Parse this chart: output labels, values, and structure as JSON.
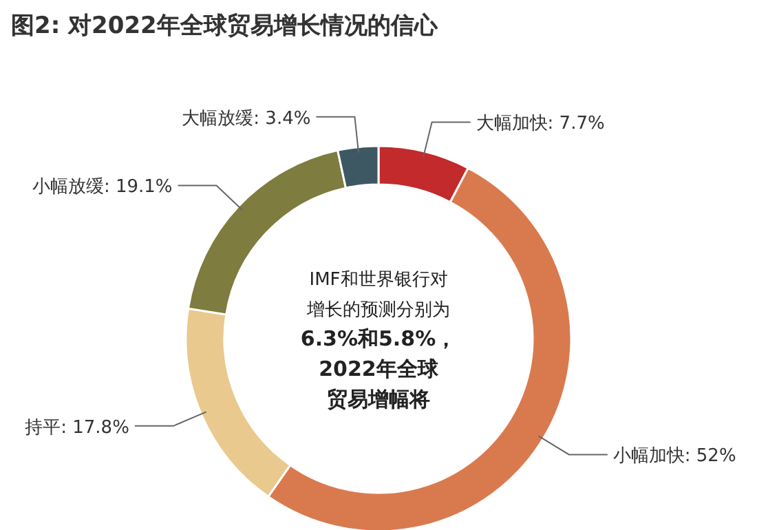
{
  "chart_data": {
    "type": "donut",
    "title": "图2: 对2022年全球贸易增长情况的信心",
    "categories": [
      "大幅加快",
      "小幅加快",
      "持平",
      "小幅放缓",
      "大幅放缓"
    ],
    "values": [
      7.7,
      52,
      17.8,
      19.1,
      3.4
    ],
    "value_labels": [
      ": 7.7%",
      ": 52%",
      ": 17.8%",
      ": 19.1%",
      ": 3.4%"
    ],
    "colors": [
      "#c22a2c",
      "#d97a4e",
      "#e9c98d",
      "#7e7c3e",
      "#3e5863"
    ],
    "annotations": [
      "IMF和世界银行对",
      "增长的预测分别为",
      "6.3%和5.8%，",
      "2022年全球",
      "贸易增幅将"
    ]
  }
}
